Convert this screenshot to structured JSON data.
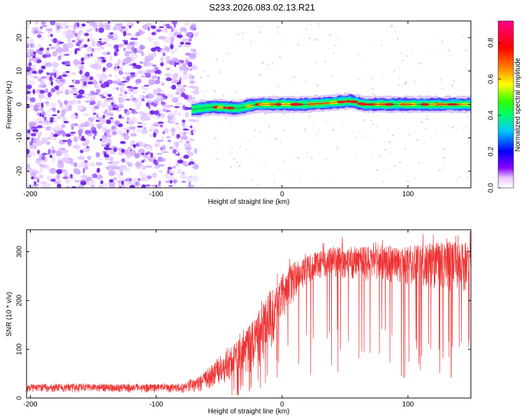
{
  "title": "S233.2026.083.02.13.R21",
  "chart_data": [
    {
      "type": "heatmap",
      "name": "spectrogram",
      "xlabel": "Height of straight line (km)",
      "ylabel": "Frequency (Hz)",
      "xlim": [
        -203,
        150
      ],
      "ylim": [
        -25,
        25
      ],
      "xticks": [
        -200,
        -100,
        0,
        100
      ],
      "yticks": [
        -20,
        -10,
        0,
        10,
        20
      ],
      "colorbar": {
        "label": "Normalized spectral amplitude",
        "range": [
          0,
          0.92
        ],
        "ticks": [
          0.0,
          0.2,
          0.4,
          0.6,
          0.8
        ],
        "colors": [
          "#ffffff",
          "#8a00ff",
          "#0000ff",
          "#00c8ff",
          "#00ff66",
          "#33ff00",
          "#ffff00",
          "#ff8000",
          "#ff0000",
          "#ff0088"
        ]
      },
      "noise_region_x": [
        -203,
        -72
      ],
      "signal_line_x": [
        -72,
        150
      ],
      "signal_center_freq": [
        [
          -72,
          -1.5
        ],
        [
          -55,
          -0.8
        ],
        [
          -35,
          -1.2
        ],
        [
          -20,
          0.0
        ],
        [
          0,
          0.0
        ],
        [
          20,
          0.0
        ],
        [
          40,
          0.5
        ],
        [
          55,
          1.0
        ],
        [
          65,
          0.0
        ],
        [
          90,
          0.0
        ],
        [
          150,
          0.0
        ]
      ]
    },
    {
      "type": "line",
      "name": "snr",
      "xlabel": "Height of straight line (km)",
      "ylabel": "SNR (10 * v/v)",
      "xlim": [
        -203,
        150
      ],
      "ylim": [
        0,
        345
      ],
      "xticks": [
        -200,
        -100,
        0,
        100
      ],
      "yticks": [
        0,
        100,
        200,
        300
      ],
      "color": "#ee3333",
      "envelope": [
        [
          -203,
          12,
          28
        ],
        [
          -80,
          10,
          28
        ],
        [
          -65,
          12,
          45
        ],
        [
          -50,
          25,
          80
        ],
        [
          -35,
          35,
          120
        ],
        [
          -20,
          55,
          170
        ],
        [
          -10,
          90,
          220
        ],
        [
          0,
          150,
          255
        ],
        [
          10,
          200,
          280
        ],
        [
          20,
          235,
          295
        ],
        [
          40,
          245,
          310
        ],
        [
          60,
          240,
          310
        ],
        [
          80,
          235,
          315
        ],
        [
          100,
          230,
          312
        ],
        [
          120,
          220,
          320
        ],
        [
          150,
          210,
          320
        ]
      ]
    }
  ]
}
